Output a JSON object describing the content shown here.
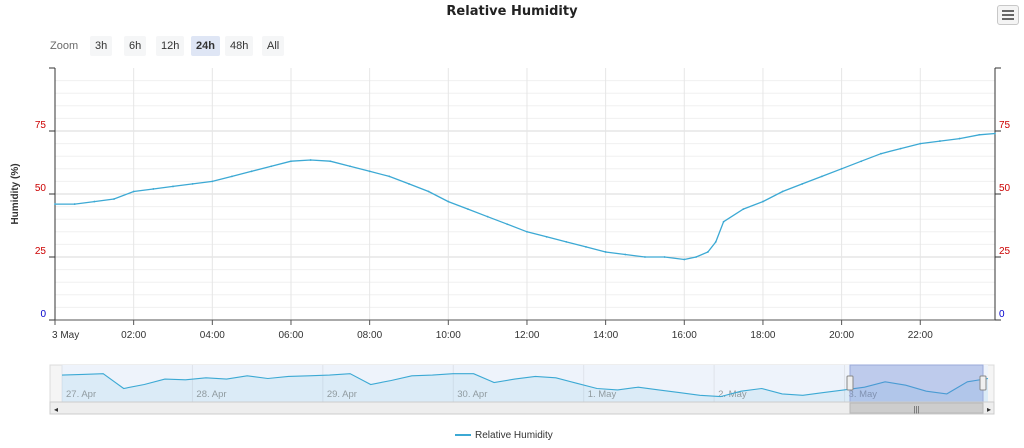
{
  "chart_data": {
    "type": "line",
    "title": "Relative Humidity",
    "ylabel": "Humidity (%)",
    "xlabel": "",
    "ylim": [
      0,
      100
    ],
    "y_ticks": [
      "0",
      "25",
      "50",
      "75"
    ],
    "y_tick_values": [
      0,
      25,
      50,
      75
    ],
    "x_range": [
      0,
      23.9
    ],
    "x_ticks": [
      "3 May",
      "02:00",
      "04:00",
      "06:00",
      "08:00",
      "10:00",
      "12:00",
      "14:00",
      "16:00",
      "18:00",
      "20:00",
      "22:00"
    ],
    "x_tick_values": [
      0,
      2,
      4,
      6,
      8,
      10,
      12,
      14,
      16,
      18,
      20,
      22
    ],
    "grid": true,
    "legend_position": "bottom-center",
    "color": "#3ca9d4",
    "series": [
      {
        "name": "Relative Humidity",
        "x": [
          0,
          0.5,
          1,
          1.5,
          2,
          2.5,
          3,
          3.5,
          4,
          4.5,
          5,
          5.5,
          6,
          6.5,
          7,
          7.5,
          8,
          8.5,
          9,
          9.5,
          10,
          10.5,
          11,
          11.5,
          12,
          12.5,
          13,
          13.5,
          14,
          14.5,
          15,
          15.5,
          16,
          16.3,
          16.6,
          16.8,
          17,
          17.5,
          18,
          18.5,
          19,
          19.5,
          20,
          20.5,
          21,
          21.5,
          22,
          22.5,
          23,
          23.5,
          23.9
        ],
        "values": [
          46,
          46,
          47,
          48,
          51,
          52,
          53,
          54,
          55,
          57,
          59,
          61,
          63,
          63.5,
          63,
          61,
          59,
          57,
          54,
          51,
          47,
          44,
          41,
          38,
          35,
          33,
          31,
          29,
          27,
          26,
          25,
          25,
          24,
          25,
          27,
          31,
          39,
          44,
          47,
          51,
          54,
          57,
          60,
          63,
          66,
          68,
          70,
          71,
          72,
          73.5,
          74
        ]
      }
    ]
  },
  "navigator": {
    "labels": [
      "27. Apr",
      "28. Apr",
      "29. Apr",
      "30. Apr",
      "1. May",
      "2. May",
      "3. May"
    ],
    "values": [
      80,
      81,
      82,
      60,
      66,
      74,
      73,
      76,
      74,
      79,
      75,
      78,
      79,
      80,
      82,
      66,
      72,
      79,
      80,
      82,
      82,
      69,
      74,
      78,
      76,
      68,
      60,
      58,
      62,
      58,
      54,
      50,
      48,
      56,
      60,
      52,
      50,
      54,
      58,
      62,
      70,
      65,
      56,
      52,
      70,
      75
    ]
  },
  "zoom": {
    "label": "Zoom",
    "buttons": [
      "3h",
      "6h",
      "12h",
      "24h",
      "48h",
      "All"
    ],
    "active": "24h"
  },
  "legend": {
    "label": "Relative Humidity"
  }
}
